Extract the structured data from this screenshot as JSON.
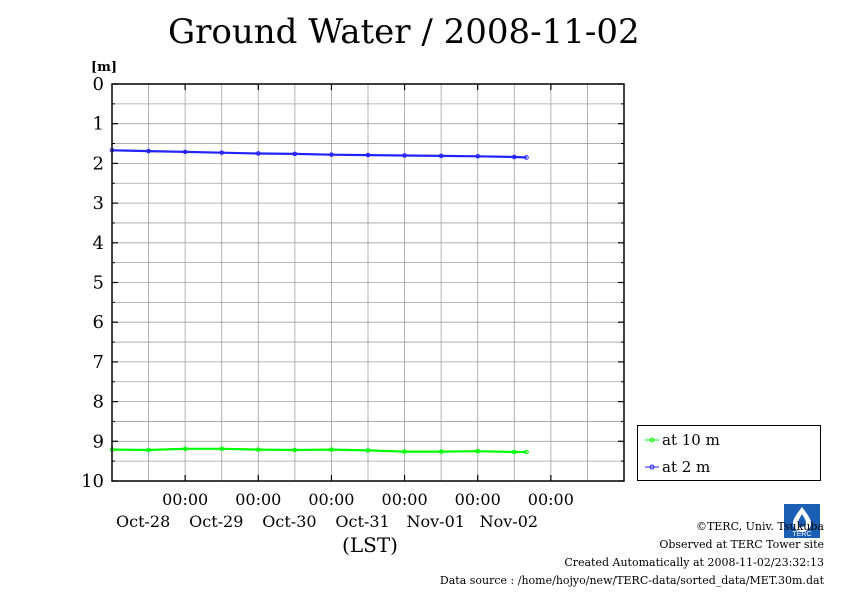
{
  "chart_data": {
    "type": "line",
    "title": "Ground Water / 2008-11-02",
    "ylabel": "[m]",
    "xlabel": "(LST)",
    "ylim": [
      0,
      10
    ],
    "y_inverted": true,
    "y_ticks": [
      "0",
      "1",
      "2",
      "3",
      "4",
      "5",
      "6",
      "7",
      "8",
      "9",
      "10"
    ],
    "x_range": [
      "2008-10-27T00:00",
      "2008-11-03T00:00"
    ],
    "x_ticks": [
      {
        "time": "00:00",
        "date": "Oct-28"
      },
      {
        "time": "00:00",
        "date": "Oct-29"
      },
      {
        "time": "00:00",
        "date": "Oct-30"
      },
      {
        "time": "00:00",
        "date": "Oct-31"
      },
      {
        "time": "00:00",
        "date": "Nov-01"
      },
      {
        "time": "00:00",
        "date": "Nov-02"
      }
    ],
    "grid": true,
    "legend_position": "right",
    "series": [
      {
        "name": "at 10 m",
        "color": "#00ff00",
        "x": [
          "2008-10-27T00:00",
          "2008-10-27T12:00",
          "2008-10-28T00:00",
          "2008-10-28T12:00",
          "2008-10-29T00:00",
          "2008-10-29T12:00",
          "2008-10-30T00:00",
          "2008-10-30T12:00",
          "2008-10-31T00:00",
          "2008-10-31T12:00",
          "2008-11-01T00:00",
          "2008-11-01T12:00",
          "2008-11-01T16:00"
        ],
        "values": [
          9.21,
          9.22,
          9.19,
          9.19,
          9.21,
          9.22,
          9.21,
          9.23,
          9.26,
          9.26,
          9.25,
          9.27,
          9.27
        ]
      },
      {
        "name": "at 2 m",
        "color": "#2222ff",
        "x": [
          "2008-10-27T00:00",
          "2008-10-27T12:00",
          "2008-10-28T00:00",
          "2008-10-28T12:00",
          "2008-10-29T00:00",
          "2008-10-29T12:00",
          "2008-10-30T00:00",
          "2008-10-30T12:00",
          "2008-10-31T00:00",
          "2008-10-31T12:00",
          "2008-11-01T00:00",
          "2008-11-01T12:00",
          "2008-11-01T16:00"
        ],
        "values": [
          1.67,
          1.69,
          1.71,
          1.73,
          1.75,
          1.76,
          1.78,
          1.79,
          1.8,
          1.81,
          1.82,
          1.84,
          1.85
        ]
      }
    ]
  },
  "credits": {
    "copyright": "©TERC, Univ. Tsukuba",
    "observed": "Observed at TERC Tower site",
    "created": "Created Automatically at 2008-11-02/23:32:13",
    "source": "Data source : /home/hojyo/new/TERC-data/sorted_data/MET.30m.dat",
    "logo_text": "TERC"
  }
}
